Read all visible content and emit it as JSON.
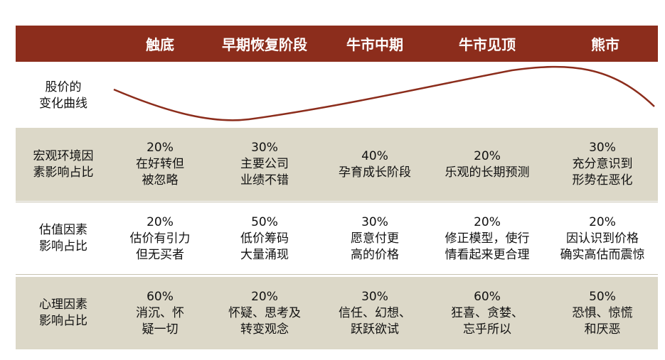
{
  "colors": {
    "header_bg": "#8c2d1c",
    "band_bg": "#dcd8c8",
    "curve": "#8c2d1c"
  },
  "columns": [
    "触底",
    "早期恢复阶段",
    "牛市中期",
    "牛市见顶",
    "熊市"
  ],
  "curve_label": [
    "股价的",
    "变化曲线"
  ],
  "rows": [
    {
      "label": [
        "宏观环境因",
        "素影响占比"
      ],
      "cells": [
        [
          "20%",
          "在好转但",
          "被忽略"
        ],
        [
          "30%",
          "主要公司",
          "业绩不错"
        ],
        [
          "40%",
          "孕育成长阶段"
        ],
        [
          "20%",
          "乐观的长期预测"
        ],
        [
          "30%",
          "充分意识到",
          "形势在恶化"
        ]
      ]
    },
    {
      "label": [
        "估值因素",
        "影响占比"
      ],
      "cells": [
        [
          "20%",
          "估价有引力",
          "但无买者"
        ],
        [
          "50%",
          "低价筹码",
          "大量涌现"
        ],
        [
          "30%",
          "愿意付更",
          "高的价格"
        ],
        [
          "20%",
          "修正模型，使行",
          "情看起来更合理"
        ],
        [
          "20%",
          "因认识到价格",
          "确实高估而震惊"
        ]
      ]
    },
    {
      "label": [
        "心理因素",
        "影响占比"
      ],
      "cells": [
        [
          "60%",
          "消沉、怀",
          "疑一切"
        ],
        [
          "20%",
          "怀疑、思考及",
          "转变观念"
        ],
        [
          "30%",
          "信任、幻想、",
          "跃跃欲试"
        ],
        [
          "60%",
          "狂喜、贪婪、",
          "忘乎所以"
        ],
        [
          "50%",
          "恐惧、惊慌",
          "和厌恶"
        ]
      ]
    }
  ]
}
